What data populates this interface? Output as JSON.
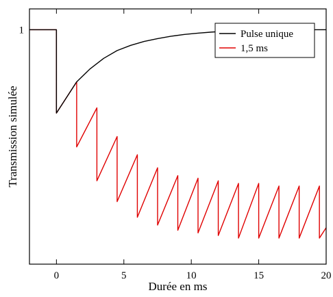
{
  "chart_data": {
    "type": "line",
    "title": "",
    "xlabel": "Durée en ms",
    "ylabel": "Transmission simulée",
    "xlim": [
      -2,
      20
    ],
    "ylim": [
      0.1,
      1.08
    ],
    "xticks": [
      0,
      5,
      10,
      15,
      20
    ],
    "yticks": [
      1
    ],
    "grid": false,
    "legend_position": "top-right",
    "series": [
      {
        "name": "Pulse unique",
        "color": "#000000",
        "x": [
          -2,
          0,
          0,
          1.5,
          2.5,
          3.5,
          4.5,
          5.5,
          6.5,
          7.5,
          8.5,
          9.5,
          10.5,
          11.5,
          12.5,
          13.5,
          14.5,
          15.5,
          16.5,
          17.5,
          18.5,
          19.5,
          20
        ],
        "y": [
          1.0,
          1.0,
          0.68,
          0.8,
          0.85,
          0.89,
          0.92,
          0.94,
          0.955,
          0.966,
          0.975,
          0.982,
          0.987,
          0.991,
          0.994,
          0.996,
          0.997,
          0.998,
          0.999,
          0.999,
          1.0,
          1.0,
          1.0
        ]
      },
      {
        "name": "1,5 ms",
        "color": "#e00000",
        "x": [
          -2,
          0,
          0,
          1.5,
          1.5,
          3,
          3,
          4.5,
          4.5,
          6,
          6,
          7.5,
          7.5,
          9,
          9,
          10.5,
          10.5,
          12,
          12,
          13.5,
          13.5,
          15,
          15,
          16.5,
          16.5,
          18,
          18,
          19.5,
          19.5,
          20
        ],
        "y": [
          1.0,
          1.0,
          0.68,
          0.8,
          0.55,
          0.7,
          0.42,
          0.59,
          0.34,
          0.52,
          0.28,
          0.47,
          0.25,
          0.44,
          0.23,
          0.43,
          0.22,
          0.42,
          0.21,
          0.41,
          0.2,
          0.41,
          0.2,
          0.4,
          0.2,
          0.4,
          0.2,
          0.4,
          0.2,
          0.24
        ]
      }
    ]
  }
}
